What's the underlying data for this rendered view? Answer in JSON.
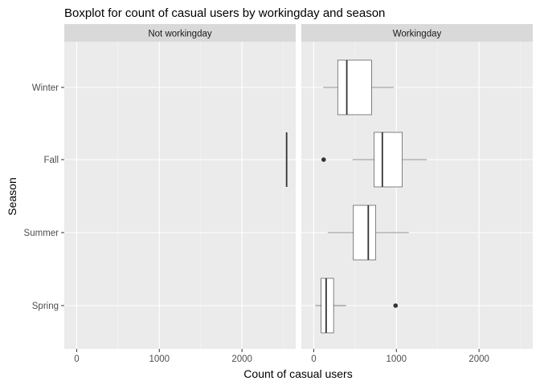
{
  "chart_data": {
    "type": "boxplot",
    "title": "Boxplot for count of casual users by workingday and season",
    "xlabel": "Count of casual users",
    "ylabel": "Season",
    "xlim": [
      -150,
      2650
    ],
    "x_ticks": [
      0,
      1000,
      2000
    ],
    "categories": [
      "Winter",
      "Fall",
      "Summer",
      "Spring"
    ],
    "facets": [
      {
        "label": "Not workingday",
        "boxes": [
          {
            "season": "Fall",
            "min": 2540,
            "q1": 2540,
            "median": 2540,
            "q3": 2540,
            "max": 2540,
            "outliers": []
          }
        ]
      },
      {
        "label": "Workingday",
        "boxes": [
          {
            "season": "Winter",
            "min": 115,
            "q1": 290,
            "median": 400,
            "q3": 700,
            "max": 970,
            "outliers": []
          },
          {
            "season": "Fall",
            "min": 470,
            "q1": 730,
            "median": 830,
            "q3": 1070,
            "max": 1370,
            "outliers": [
              120
            ]
          },
          {
            "season": "Summer",
            "min": 170,
            "q1": 480,
            "median": 660,
            "q3": 750,
            "max": 1150,
            "outliers": []
          },
          {
            "season": "Spring",
            "min": 20,
            "q1": 90,
            "median": 150,
            "q3": 240,
            "max": 390,
            "outliers": [
              990
            ]
          }
        ]
      }
    ],
    "grid": true,
    "colors": {
      "panel": "#ebebeb",
      "strip": "#d9d9d9",
      "grid_major": "#ffffff",
      "grid_minor": "#f5f5f5",
      "box_fill": "#ffffff",
      "box_line": "#333333",
      "point": "#333333"
    }
  }
}
